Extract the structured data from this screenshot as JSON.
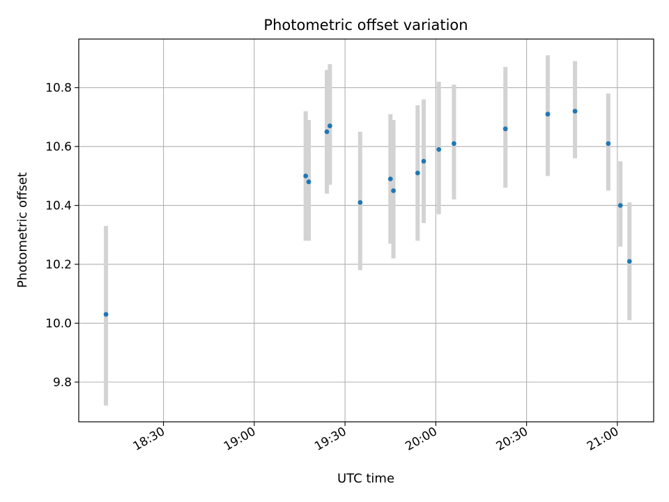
{
  "chart_data": {
    "type": "scatter",
    "title": "Photometric offset variation",
    "xlabel": "UTC time",
    "ylabel": "Photometric offset",
    "x_axis": {
      "type": "time",
      "range": [
        "18:02",
        "21:12"
      ],
      "ticks": [
        {
          "value": "18:30",
          "label": "18:30"
        },
        {
          "value": "19:00",
          "label": "19:00"
        },
        {
          "value": "19:30",
          "label": "19:30"
        },
        {
          "value": "20:00",
          "label": "20:00"
        },
        {
          "value": "20:30",
          "label": "20:30"
        },
        {
          "value": "21:00",
          "label": "21:00"
        }
      ]
    },
    "y_axis": {
      "range": [
        9.665,
        10.965
      ],
      "ticks": [
        {
          "value": 9.8,
          "label": "9.8"
        },
        {
          "value": 10.0,
          "label": "10.0"
        },
        {
          "value": 10.2,
          "label": "10.2"
        },
        {
          "value": 10.4,
          "label": "10.4"
        },
        {
          "value": 10.6,
          "label": "10.6"
        },
        {
          "value": 10.8,
          "label": "10.8"
        }
      ]
    },
    "grid": true,
    "legend": "none",
    "colors": {
      "marker": "#1f77b4",
      "errorbar": "#d3d3d3",
      "grid": "#b0b0b0",
      "axes": "#000000"
    },
    "points": [
      {
        "time": "18:11",
        "y": 10.03,
        "y_low": 9.72,
        "y_high": 10.33
      },
      {
        "time": "19:17",
        "y": 10.5,
        "y_low": 10.28,
        "y_high": 10.72
      },
      {
        "time": "19:18",
        "y": 10.48,
        "y_low": 10.28,
        "y_high": 10.69
      },
      {
        "time": "19:24",
        "y": 10.65,
        "y_low": 10.44,
        "y_high": 10.86
      },
      {
        "time": "19:25",
        "y": 10.67,
        "y_low": 10.47,
        "y_high": 10.88
      },
      {
        "time": "19:35",
        "y": 10.41,
        "y_low": 10.18,
        "y_high": 10.65
      },
      {
        "time": "19:45",
        "y": 10.49,
        "y_low": 10.27,
        "y_high": 10.71
      },
      {
        "time": "19:46",
        "y": 10.45,
        "y_low": 10.22,
        "y_high": 10.69
      },
      {
        "time": "19:54",
        "y": 10.51,
        "y_low": 10.28,
        "y_high": 10.74
      },
      {
        "time": "19:56",
        "y": 10.55,
        "y_low": 10.34,
        "y_high": 10.76
      },
      {
        "time": "20:01",
        "y": 10.59,
        "y_low": 10.37,
        "y_high": 10.82
      },
      {
        "time": "20:06",
        "y": 10.61,
        "y_low": 10.42,
        "y_high": 10.81
      },
      {
        "time": "20:23",
        "y": 10.66,
        "y_low": 10.46,
        "y_high": 10.87
      },
      {
        "time": "20:37",
        "y": 10.71,
        "y_low": 10.5,
        "y_high": 10.91
      },
      {
        "time": "20:46",
        "y": 10.72,
        "y_low": 10.56,
        "y_high": 10.89
      },
      {
        "time": "20:57",
        "y": 10.61,
        "y_low": 10.45,
        "y_high": 10.78
      },
      {
        "time": "21:01",
        "y": 10.4,
        "y_low": 10.26,
        "y_high": 10.55
      },
      {
        "time": "21:04",
        "y": 10.21,
        "y_low": 10.01,
        "y_high": 10.41
      }
    ]
  }
}
